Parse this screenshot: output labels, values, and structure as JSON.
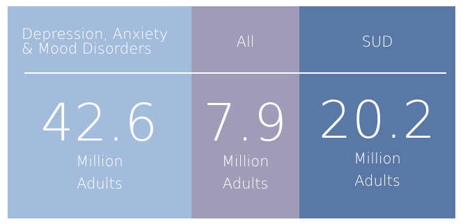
{
  "stats": [
    {
      "header_lines": [
        "Depression, Anxiety",
        "& Mood Disorders"
      ],
      "value": "42.6",
      "unit_lines": [
        "Million",
        "Adults"
      ],
      "background": "#a4bcdb"
    },
    {
      "header_lines": [
        "All"
      ],
      "value": "7.9",
      "unit_lines": [
        "Million",
        "Adults"
      ],
      "background": "#a09cb8"
    },
    {
      "header_lines": [
        "SUD"
      ],
      "value": "20.2",
      "unit_lines": [
        "Million",
        "Adults"
      ],
      "background": "#5a78a6"
    }
  ],
  "colors": {
    "text": "#ffffff",
    "divider": "#ffffff"
  }
}
